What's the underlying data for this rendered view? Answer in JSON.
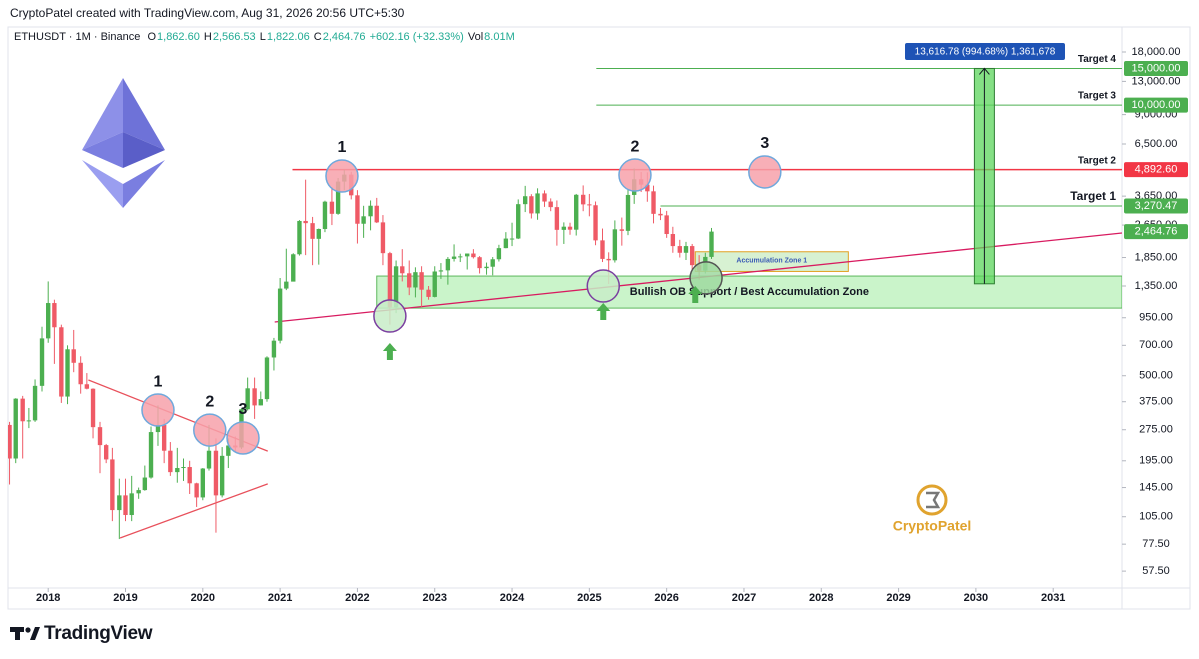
{
  "chart_data": {
    "type": "candlestick",
    "header": {
      "author": "CryptoPatel created with TradingView.com, Aug 31, 2026 20:56 UTC+5:30",
      "symbol": "ETHUSDT · 1M · Binance",
      "ohlc": [
        {
          "key": "O",
          "text": "1,862.60"
        },
        {
          "key": "H",
          "text": "2,566.53"
        },
        {
          "key": "L",
          "text": "1,822.06"
        },
        {
          "key": "C",
          "text": "2,464.76"
        }
      ],
      "change": "+602.16 (+32.33%)",
      "volume_key": "Vol",
      "volume": "8.01M"
    },
    "x": [
      2017.5,
      2017.58,
      2017.67,
      2017.75,
      2017.83,
      2017.92,
      2018.0,
      2018.08,
      2018.17,
      2018.25,
      2018.33,
      2018.42,
      2018.5,
      2018.58,
      2018.67,
      2018.75,
      2018.83,
      2018.92,
      2019.0,
      2019.08,
      2019.17,
      2019.25,
      2019.33,
      2019.42,
      2019.5,
      2019.58,
      2019.67,
      2019.75,
      2019.83,
      2019.92,
      2020.0,
      2020.08,
      2020.17,
      2020.25,
      2020.33,
      2020.42,
      2020.5,
      2020.58,
      2020.67,
      2020.75,
      2020.83,
      2020.92,
      2021.0,
      2021.08,
      2021.17,
      2021.25,
      2021.33,
      2021.42,
      2021.5,
      2021.58,
      2021.67,
      2021.75,
      2021.83,
      2021.92,
      2022.0,
      2022.08,
      2022.17,
      2022.25,
      2022.33,
      2022.42,
      2022.5,
      2022.58,
      2022.67,
      2022.75,
      2022.83,
      2022.92,
      2023.0,
      2023.08,
      2023.17,
      2023.25,
      2023.33,
      2023.42,
      2023.5,
      2023.58,
      2023.67,
      2023.75,
      2023.83,
      2023.92,
      2024.0,
      2024.08,
      2024.17,
      2024.25,
      2024.33,
      2024.42,
      2024.5,
      2024.58,
      2024.67,
      2024.75,
      2024.83,
      2024.92,
      2025.0,
      2025.08,
      2025.17,
      2025.25,
      2025.33,
      2025.42,
      2025.5,
      2025.58,
      2025.67,
      2025.75,
      2025.83,
      2025.92,
      2026.0,
      2026.08,
      2026.17,
      2026.25,
      2026.33,
      2026.42,
      2026.5,
      2026.58
    ],
    "open": [
      290,
      200,
      388,
      302,
      305,
      447,
      756,
      1118,
      855,
      397,
      670,
      577,
      455,
      433,
      283,
      232,
      198,
      113,
      133,
      107,
      136,
      141,
      162,
      268,
      290,
      218,
      172,
      180,
      182,
      152,
      130,
      179,
      218,
      133,
      206,
      231,
      226,
      345,
      435,
      360,
      386,
      612,
      737,
      1312,
      1417,
      1918,
      2773,
      2707,
      2275,
      2537,
      3433,
      3001,
      4288,
      4632,
      3683,
      2689,
      2920,
      3282,
      2730,
      1942,
      1067,
      1679,
      1554,
      1328,
      1573,
      1296,
      1196,
      1585,
      1605,
      1822,
      1870,
      1874,
      1934,
      1857,
      1645,
      1671,
      1815,
      2053,
      2282,
      2283,
      3340,
      3647,
      3014,
      3762,
      3438,
      3232,
      2513,
      2603,
      2518,
      3705,
      3332,
      3300,
      2237,
      1822,
      1794,
      2528,
      2486,
      3698,
      4400,
      4145,
      3850,
      3000,
      2950,
      2400,
      2100,
      1950,
      2100,
      1700,
      1600,
      1862.6
    ],
    "high": [
      300,
      390,
      400,
      350,
      480,
      860,
      1420,
      1160,
      880,
      700,
      830,
      620,
      515,
      435,
      300,
      235,
      225,
      160,
      160,
      165,
      145,
      185,
      285,
      360,
      310,
      240,
      225,
      200,
      195,
      153,
      180,
      290,
      250,
      227,
      250,
      255,
      349,
      490,
      490,
      420,
      620,
      760,
      1475,
      2040,
      1940,
      2800,
      4380,
      2900,
      2550,
      3470,
      4030,
      4460,
      4870,
      4780,
      3900,
      3280,
      3480,
      3580,
      2960,
      1970,
      1790,
      2030,
      1790,
      1660,
      1680,
      1350,
      1680,
      1740,
      1860,
      2140,
      1930,
      1930,
      2030,
      1880,
      1750,
      1860,
      2130,
      2450,
      2720,
      3520,
      4090,
      3730,
      3980,
      3890,
      3560,
      3480,
      2730,
      2720,
      3740,
      4110,
      3740,
      3440,
      2550,
      1960,
      2790,
      2880,
      3940,
      4960,
      4770,
      4750,
      4100,
      3200,
      3100,
      2600,
      2250,
      2200,
      2150,
      1900,
      1950,
      2566.53
    ],
    "low": [
      150,
      190,
      200,
      280,
      300,
      420,
      720,
      570,
      370,
      365,
      520,
      410,
      430,
      250,
      170,
      190,
      100,
      82,
      100,
      100,
      128,
      140,
      160,
      230,
      190,
      165,
      153,
      156,
      135,
      117,
      126,
      175,
      88,
      130,
      180,
      215,
      222,
      340,
      310,
      360,
      375,
      530,
      715,
      1290,
      1420,
      1890,
      1900,
      1700,
      1710,
      2450,
      2650,
      2970,
      3900,
      3520,
      2160,
      2300,
      2500,
      2710,
      1700,
      880,
      1000,
      1420,
      1220,
      1190,
      1070,
      1160,
      1190,
      1460,
      1370,
      1770,
      1760,
      1620,
      1830,
      1550,
      1530,
      1520,
      1770,
      2050,
      2100,
      2270,
      3060,
      2850,
      2810,
      3240,
      3090,
      2110,
      2150,
      2380,
      2360,
      3090,
      2920,
      2120,
      1760,
      1380,
      1750,
      2110,
      2370,
      3350,
      3820,
      3430,
      2700,
      2800,
      2300,
      1950,
      1850,
      1800,
      1600,
      1450,
      1550,
      1822.06
    ],
    "close": [
      200,
      388,
      302,
      305,
      447,
      756,
      1118,
      855,
      397,
      670,
      577,
      455,
      433,
      283,
      232,
      198,
      113,
      133,
      107,
      136,
      141,
      162,
      268,
      290,
      218,
      172,
      180,
      182,
      152,
      130,
      179,
      218,
      133,
      206,
      231,
      226,
      345,
      435,
      360,
      386,
      612,
      737,
      1312,
      1417,
      1918,
      2773,
      2707,
      2275,
      2537,
      3433,
      3001,
      4288,
      4632,
      3683,
      2689,
      2920,
      3282,
      2730,
      1942,
      1067,
      1679,
      1554,
      1328,
      1573,
      1296,
      1196,
      1585,
      1605,
      1822,
      1870,
      1874,
      1934,
      1857,
      1645,
      1671,
      1815,
      2053,
      2282,
      2283,
      3340,
      3647,
      3014,
      3762,
      3438,
      3232,
      2513,
      2603,
      2518,
      3705,
      3332,
      3300,
      2237,
      1822,
      1794,
      2528,
      2486,
      3698,
      4400,
      4145,
      3850,
      3000,
      2950,
      2400,
      2100,
      1950,
      2100,
      1700,
      1600,
      1862.6,
      2464.76
    ],
    "up_color": "#4caf50",
    "down_color": "#ef5a66",
    "xlim": [
      2017.48,
      2031.89
    ],
    "xticks": [
      2018,
      2019,
      2020,
      2021,
      2022,
      2023,
      2024,
      2025,
      2026,
      2027,
      2028,
      2029,
      2030,
      2031
    ],
    "ylim": [
      47.7,
      22960
    ],
    "log_scale": true,
    "grid": false,
    "yticks": [
      {
        "value": 18000,
        "label": "18,000.00"
      },
      {
        "value": 13000,
        "label": "13,000.00"
      },
      {
        "value": 9000,
        "label": "9,000.00"
      },
      {
        "value": 6500,
        "label": "6,500.00"
      },
      {
        "value": 3650,
        "label": "3,650.00"
      },
      {
        "value": 2650,
        "label": "2,650.00"
      },
      {
        "value": 1850,
        "label": "1,850.00"
      },
      {
        "value": 1350,
        "label": "1,350.00"
      },
      {
        "value": 950,
        "label": "950.00"
      },
      {
        "value": 700,
        "label": "700.00"
      },
      {
        "value": 500,
        "label": "500.00"
      },
      {
        "value": 375,
        "label": "375.00"
      },
      {
        "value": 275,
        "label": "275.00"
      },
      {
        "value": 195,
        "label": "195.00"
      },
      {
        "value": 145,
        "label": "145.00"
      },
      {
        "value": 105,
        "label": "105.00"
      },
      {
        "value": 77.5,
        "label": "77.50"
      },
      {
        "value": 57.5,
        "label": "57.50"
      }
    ],
    "hlines": [
      {
        "name": "Target 4",
        "value": 15000,
        "label": "15,000.00",
        "x_start": 2025.09,
        "color": "#4caf50"
      },
      {
        "name": "Target 3",
        "value": 10000,
        "label": "10,000.00",
        "x_start": 2025.09,
        "color": "#4caf50"
      },
      {
        "name": "Target 2",
        "value": 4892.6,
        "label": "4,892.60",
        "x_start": 2021.16,
        "color": "#f23645"
      },
      {
        "name": "Target 1",
        "value": 3270.47,
        "label": "3,270.47",
        "x_start": 2025.92,
        "color": "#4caf50"
      }
    ],
    "last_price": {
      "value": 2464.76,
      "label": "2,464.76",
      "color": "#4caf50"
    },
    "zones": [
      {
        "label": "Bullish OB Support / Best Accumulation Zone",
        "x": [
          2022.25,
          2031.89
        ],
        "y": [
          1057,
          1507
        ],
        "color": "#b8f0b8",
        "stroke": "#5cb85c",
        "text_color": "#131722"
      },
      {
        "label": "Accumulation Zone 1",
        "x": [
          2026.37,
          2028.35
        ],
        "y": [
          1586,
          1972
        ],
        "color": "#c9ecc3",
        "stroke": "#e0a020",
        "text_color": "#3b5bb5"
      }
    ],
    "lines": [
      {
        "x": [
          2018.52,
          2020.84
        ],
        "y": [
          477,
          217
        ],
        "color": "#e8505b"
      },
      {
        "x": [
          2018.93,
          2020.84
        ],
        "y": [
          83,
          151
        ],
        "color": "#e8505b"
      },
      {
        "x": [
          2020.93,
          2031.89
        ],
        "y": [
          906,
          2427
        ],
        "color": "#d81b60"
      },
      {
        "x": [
          2021.16,
          2021.16
        ],
        "y": [
          4892.6,
          4892.6
        ],
        "color": "#f23645"
      }
    ],
    "circles": [
      {
        "label": "1",
        "x": 2021.8,
        "y": 4560,
        "color": "#f7a1aa",
        "stroke": "#6fa8dc"
      },
      {
        "label": "2",
        "x": 2025.59,
        "y": 4610,
        "color": "#f7a1aa",
        "stroke": "#6fa8dc"
      },
      {
        "label": "3",
        "x": 2027.27,
        "y": 4770,
        "color": "#f7a1aa",
        "stroke": "#6fa8dc"
      },
      {
        "label": "1",
        "x": 2019.42,
        "y": 342,
        "color": "#f7a1aa",
        "stroke": "#6fa8dc"
      },
      {
        "label": "2",
        "x": 2020.09,
        "y": 274,
        "color": "#f7a1aa",
        "stroke": "#6fa8dc"
      },
      {
        "label": "3",
        "x": 2020.52,
        "y": 251,
        "color": "#f7a1aa",
        "stroke": "#6fa8dc"
      },
      {
        "x": 2022.42,
        "y": 968,
        "color": "#c8ecc8",
        "stroke": "#7b3fa0"
      },
      {
        "x": 2025.18,
        "y": 1349,
        "color": "#c8ecc8",
        "stroke": "#7b3fa0"
      },
      {
        "x": 2026.51,
        "y": 1476,
        "color": "#9fd9a0",
        "stroke": "#555555"
      }
    ],
    "arrows": [
      {
        "x": 2022.42,
        "y": 650,
        "color": "#4caf50"
      },
      {
        "x": 2025.18,
        "y": 1012,
        "color": "#4caf50"
      },
      {
        "x": 2026.37,
        "y": 1222,
        "color": "#4caf50"
      }
    ],
    "measure": {
      "label": "13,616.78 (994.68%) 1,361,678",
      "x": 2030.11,
      "from": 1383.22,
      "to": 15000,
      "color": "#5cd65c",
      "label_color": "#1e53b5"
    }
  },
  "brand": {
    "watermark": "CryptoPatel",
    "footer": "TradingView"
  }
}
